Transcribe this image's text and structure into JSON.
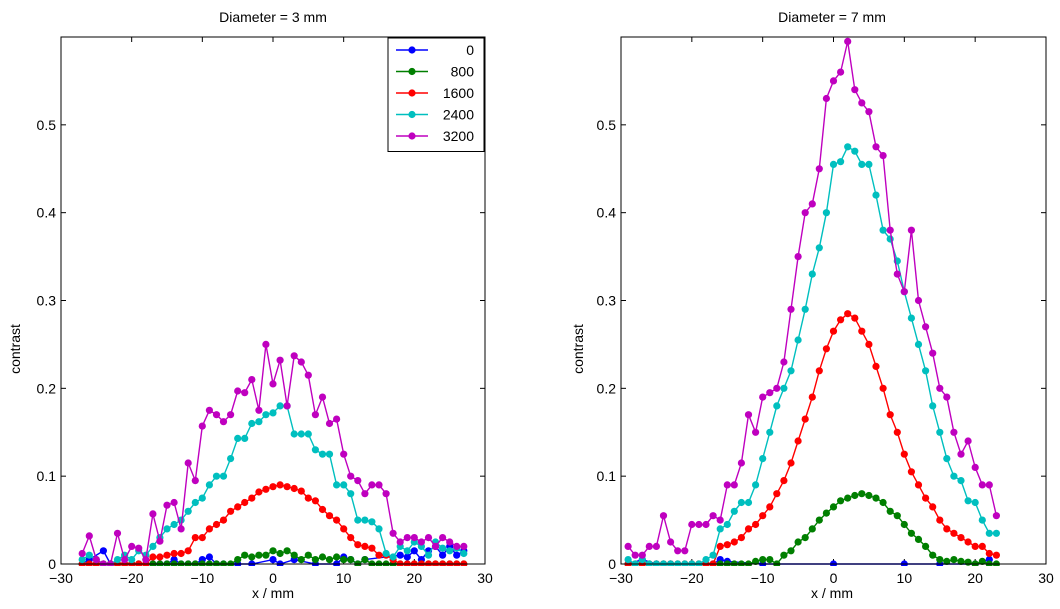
{
  "chart_data": [
    {
      "type": "line",
      "title": "Diameter = 3 mm",
      "xlabel": "x / mm",
      "ylabel": "contrast",
      "xlim": [
        -30,
        30
      ],
      "ylim": [
        0,
        0.6
      ],
      "xticks": [
        -30,
        -20,
        -10,
        0,
        10,
        20,
        30
      ],
      "yticks": [
        0,
        0.1,
        0.2,
        0.3,
        0.4,
        0.5
      ],
      "ytick_labels": [
        "0",
        "0.1",
        "0.2",
        "0.3",
        "0.4",
        "0.5"
      ],
      "grid": false,
      "legend_position": "top-right",
      "series": [
        {
          "name": "0",
          "color": "#0000ff",
          "x": [
            -27,
            -26,
            -24,
            -23,
            -20,
            -19,
            -17,
            -16,
            -15,
            -14,
            -13,
            -12,
            -11,
            -10,
            -9,
            -8,
            -7,
            -5,
            -3,
            0,
            1,
            3,
            6,
            9,
            10,
            11,
            12,
            13,
            18,
            19,
            20,
            21,
            22,
            23,
            24,
            25,
            26,
            27
          ],
          "y": [
            0.0,
            0.005,
            0.015,
            0.0,
            0.0,
            0.0,
            0.0,
            0.0,
            0.0,
            0.005,
            0.0,
            0.0,
            0.0,
            0.005,
            0.008,
            0.0,
            0.0,
            0.0,
            0.0,
            0.005,
            0.0,
            0.005,
            0.0,
            0.0,
            0.008,
            0.005,
            0.0,
            0.005,
            0.01,
            0.008,
            0.015,
            0.005,
            0.015,
            0.02,
            0.01,
            0.02,
            0.01,
            0.015
          ]
        },
        {
          "name": "800",
          "color": "#007f00",
          "x": [
            -27,
            -26,
            -25,
            -24,
            -23,
            -22,
            -21,
            -20,
            -19,
            -18,
            -17,
            -16,
            -15,
            -14,
            -13,
            -12,
            -11,
            -10,
            -9,
            -8,
            -7,
            -6,
            -5,
            -4,
            -3,
            -2,
            -1,
            0,
            1,
            2,
            3,
            4,
            5,
            6,
            7,
            8,
            9,
            10,
            11,
            12,
            13,
            14,
            15,
            16,
            17,
            18,
            19,
            20,
            21,
            22,
            23,
            24,
            25,
            26,
            27
          ],
          "y": [
            0.0,
            0.0,
            0.0,
            0.0,
            0.0,
            0.0,
            0.0,
            0.0,
            0.0,
            0.0,
            0.0,
            0.0,
            0.0,
            0.0,
            0.0,
            0.0,
            0.0,
            0.0,
            0.0,
            0.0,
            0.0,
            0.0,
            0.005,
            0.01,
            0.008,
            0.01,
            0.01,
            0.015,
            0.012,
            0.015,
            0.01,
            0.005,
            0.01,
            0.005,
            0.008,
            0.005,
            0.008,
            0.005,
            0.005,
            0.0,
            0.005,
            0.0,
            0.0,
            0.0,
            0.0,
            0.0,
            0.0,
            0.0,
            0.0,
            0.0,
            0.0,
            0.0,
            0.0,
            0.0,
            0.0
          ]
        },
        {
          "name": "1600",
          "color": "#ff0000",
          "x": [
            -27,
            -26,
            -25,
            -24,
            -23,
            -22,
            -21,
            -20,
            -19,
            -18,
            -17,
            -16,
            -15,
            -14,
            -13,
            -12,
            -11,
            -10,
            -9,
            -8,
            -7,
            -6,
            -5,
            -4,
            -3,
            -2,
            -1,
            0,
            1,
            2,
            3,
            4,
            5,
            6,
            7,
            8,
            9,
            10,
            11,
            12,
            13,
            14,
            15,
            16,
            17,
            18,
            19,
            20,
            21,
            22,
            23,
            24,
            25,
            26,
            27
          ],
          "y": [
            0.0,
            0.0,
            0.0,
            0.0,
            0.0,
            0.0,
            0.0,
            0.0,
            0.0,
            0.0,
            0.008,
            0.008,
            0.01,
            0.012,
            0.012,
            0.015,
            0.03,
            0.03,
            0.04,
            0.045,
            0.05,
            0.06,
            0.065,
            0.07,
            0.075,
            0.082,
            0.085,
            0.088,
            0.09,
            0.088,
            0.086,
            0.083,
            0.075,
            0.072,
            0.062,
            0.055,
            0.05,
            0.04,
            0.03,
            0.022,
            0.02,
            0.018,
            0.01,
            0.01,
            0.005,
            0.0,
            0.0,
            0.0,
            0.0,
            0.0,
            0.0,
            0.0,
            0.0,
            0.0,
            0.0
          ]
        },
        {
          "name": "2400",
          "color": "#00bfbf",
          "x": [
            -27,
            -26,
            -25,
            -24,
            -23,
            -22,
            -21,
            -20,
            -19,
            -18,
            -17,
            -16,
            -15,
            -14,
            -13,
            -12,
            -11,
            -10,
            -9,
            -8,
            -7,
            -6,
            -5,
            -4,
            -3,
            -2,
            -1,
            0,
            1,
            2,
            3,
            4,
            5,
            6,
            7,
            8,
            9,
            10,
            11,
            12,
            13,
            14,
            15,
            16,
            17,
            18,
            19,
            20,
            21,
            22,
            23,
            24,
            25,
            26,
            27
          ],
          "y": [
            0.005,
            0.01,
            0.005,
            0.0,
            0.0,
            0.005,
            0.01,
            0.005,
            0.015,
            0.01,
            0.02,
            0.03,
            0.04,
            0.045,
            0.05,
            0.06,
            0.07,
            0.075,
            0.09,
            0.1,
            0.1,
            0.12,
            0.143,
            0.143,
            0.16,
            0.162,
            0.17,
            0.172,
            0.18,
            0.18,
            0.148,
            0.148,
            0.148,
            0.13,
            0.125,
            0.125,
            0.09,
            0.09,
            0.08,
            0.05,
            0.05,
            0.048,
            0.04,
            0.012,
            0.008,
            0.02,
            0.015,
            0.025,
            0.02,
            0.01,
            0.025,
            0.018,
            0.015,
            0.018,
            0.012
          ]
        },
        {
          "name": "3200",
          "color": "#bf00bf",
          "x": [
            -27,
            -26,
            -25,
            -24,
            -23,
            -22,
            -21,
            -20,
            -19,
            -18,
            -17,
            -16,
            -15,
            -14,
            -13,
            -12,
            -11,
            -10,
            -9,
            -8,
            -7,
            -6,
            -5,
            -4,
            -3,
            -2,
            -1,
            0,
            1,
            2,
            3,
            4,
            5,
            6,
            7,
            8,
            9,
            10,
            11,
            12,
            13,
            14,
            15,
            16,
            17,
            18,
            19,
            20,
            21,
            22,
            23,
            24,
            25,
            26,
            27
          ],
          "y": [
            0.012,
            0.032,
            0.005,
            0.0,
            0.0,
            0.035,
            0.005,
            0.02,
            0.018,
            0.005,
            0.057,
            0.026,
            0.067,
            0.07,
            0.04,
            0.115,
            0.095,
            0.157,
            0.175,
            0.17,
            0.162,
            0.17,
            0.197,
            0.195,
            0.21,
            0.175,
            0.25,
            0.205,
            0.232,
            0.18,
            0.237,
            0.23,
            0.215,
            0.17,
            0.19,
            0.16,
            0.165,
            0.125,
            0.1,
            0.095,
            0.08,
            0.09,
            0.09,
            0.08,
            0.035,
            0.025,
            0.03,
            0.03,
            0.025,
            0.03,
            0.02,
            0.03,
            0.025,
            0.02,
            0.02
          ]
        }
      ]
    },
    {
      "type": "line",
      "title": "Diameter = 7 mm",
      "xlabel": "x / mm",
      "ylabel": "contrast",
      "xlim": [
        -30,
        30
      ],
      "ylim": [
        0,
        0.6
      ],
      "xticks": [
        -30,
        -20,
        -10,
        0,
        10,
        20,
        30
      ],
      "yticks": [
        0,
        0.1,
        0.2,
        0.3,
        0.4,
        0.5
      ],
      "ytick_labels": [
        "0",
        "0.1",
        "0.2",
        "0.3",
        "0.4",
        "0.5"
      ],
      "grid": false,
      "series": [
        {
          "name": "0",
          "color": "#0000ff",
          "x": [
            -29,
            -27,
            -25,
            -23,
            -17,
            -16,
            -15,
            -10,
            0,
            10,
            15,
            20,
            22
          ],
          "y": [
            0.0,
            0.005,
            0.0,
            0.0,
            0.0,
            0.005,
            0.003,
            0.0,
            0.0,
            0.0,
            0.0,
            0.0,
            0.005
          ]
        },
        {
          "name": "800",
          "color": "#007f00",
          "x": [
            -29,
            -28,
            -27,
            -26,
            -25,
            -24,
            -23,
            -22,
            -21,
            -20,
            -19,
            -18,
            -17,
            -16,
            -15,
            -14,
            -13,
            -12,
            -11,
            -10,
            -9,
            -8,
            -7,
            -6,
            -5,
            -4,
            -3,
            -2,
            -1,
            0,
            1,
            2,
            3,
            4,
            5,
            6,
            7,
            8,
            9,
            10,
            11,
            12,
            13,
            14,
            15,
            16,
            17,
            18,
            19,
            20,
            21,
            22,
            23
          ],
          "y": [
            0.0,
            0.0,
            0.0,
            0.0,
            0.0,
            0.0,
            0.0,
            0.0,
            0.0,
            0.0,
            0.0,
            0.0,
            0.0,
            0.0,
            0.0,
            0.0,
            0.0,
            0.0,
            0.003,
            0.005,
            0.005,
            0.0,
            0.01,
            0.015,
            0.025,
            0.03,
            0.04,
            0.05,
            0.058,
            0.065,
            0.072,
            0.075,
            0.078,
            0.08,
            0.078,
            0.075,
            0.07,
            0.06,
            0.055,
            0.045,
            0.035,
            0.028,
            0.02,
            0.01,
            0.005,
            0.003,
            0.005,
            0.003,
            0.002,
            0.0,
            0.003,
            0.0,
            0.0
          ]
        },
        {
          "name": "1600",
          "color": "#ff0000",
          "x": [
            -29,
            -28,
            -27,
            -26,
            -25,
            -24,
            -23,
            -22,
            -21,
            -20,
            -19,
            -18,
            -17,
            -16,
            -15,
            -14,
            -13,
            -12,
            -11,
            -10,
            -9,
            -8,
            -7,
            -6,
            -5,
            -4,
            -3,
            -2,
            -1,
            0,
            1,
            2,
            3,
            4,
            5,
            6,
            7,
            8,
            9,
            10,
            11,
            12,
            13,
            14,
            15,
            16,
            17,
            18,
            19,
            20,
            21,
            22,
            23
          ],
          "y": [
            0.0,
            0.0,
            0.0,
            0.0,
            0.0,
            0.0,
            0.0,
            0.0,
            0.0,
            0.0,
            0.0,
            0.0,
            0.0,
            0.02,
            0.022,
            0.025,
            0.03,
            0.04,
            0.045,
            0.055,
            0.065,
            0.08,
            0.095,
            0.115,
            0.14,
            0.165,
            0.19,
            0.22,
            0.245,
            0.265,
            0.278,
            0.285,
            0.28,
            0.265,
            0.25,
            0.225,
            0.2,
            0.17,
            0.15,
            0.125,
            0.105,
            0.09,
            0.075,
            0.065,
            0.05,
            0.04,
            0.035,
            0.03,
            0.025,
            0.02,
            0.02,
            0.012,
            0.01
          ]
        },
        {
          "name": "2400",
          "color": "#00bfbf",
          "x": [
            -29,
            -28,
            -27,
            -26,
            -25,
            -24,
            -23,
            -22,
            -21,
            -20,
            -19,
            -18,
            -17,
            -16,
            -15,
            -14,
            -13,
            -12,
            -11,
            -10,
            -9,
            -8,
            -7,
            -6,
            -5,
            -4,
            -3,
            -2,
            -1,
            0,
            1,
            2,
            3,
            4,
            5,
            6,
            7,
            8,
            9,
            10,
            11,
            12,
            13,
            14,
            15,
            16,
            17,
            18,
            19,
            20,
            21,
            22,
            23
          ],
          "y": [
            0.005,
            0.0,
            0.005,
            0.0,
            0.0,
            0.0,
            0.0,
            0.0,
            0.0,
            0.0,
            0.0,
            0.005,
            0.01,
            0.04,
            0.045,
            0.06,
            0.07,
            0.07,
            0.09,
            0.12,
            0.15,
            0.18,
            0.2,
            0.22,
            0.255,
            0.29,
            0.33,
            0.36,
            0.4,
            0.455,
            0.458,
            0.475,
            0.47,
            0.455,
            0.455,
            0.42,
            0.38,
            0.37,
            0.345,
            0.31,
            0.28,
            0.25,
            0.22,
            0.18,
            0.15,
            0.12,
            0.1,
            0.095,
            0.072,
            0.07,
            0.05,
            0.035,
            0.035
          ]
        },
        {
          "name": "3200",
          "color": "#bf00bf",
          "x": [
            -29,
            -28,
            -27,
            -26,
            -25,
            -24,
            -23,
            -22,
            -21,
            -20,
            -19,
            -18,
            -17,
            -16,
            -15,
            -14,
            -13,
            -12,
            -11,
            -10,
            -9,
            -8,
            -7,
            -6,
            -5,
            -4,
            -3,
            -2,
            -1,
            0,
            1,
            2,
            3,
            4,
            5,
            6,
            7,
            8,
            9,
            10,
            11,
            12,
            13,
            14,
            15,
            16,
            17,
            18,
            19,
            20,
            21,
            22,
            23
          ],
          "y": [
            0.02,
            0.01,
            0.01,
            0.02,
            0.02,
            0.055,
            0.025,
            0.015,
            0.015,
            0.045,
            0.045,
            0.045,
            0.055,
            0.05,
            0.09,
            0.09,
            0.115,
            0.17,
            0.15,
            0.19,
            0.195,
            0.2,
            0.23,
            0.29,
            0.35,
            0.4,
            0.41,
            0.45,
            0.53,
            0.55,
            0.56,
            0.595,
            0.54,
            0.525,
            0.515,
            0.475,
            0.465,
            0.38,
            0.33,
            0.31,
            0.38,
            0.3,
            0.27,
            0.24,
            0.2,
            0.19,
            0.15,
            0.125,
            0.14,
            0.11,
            0.09,
            0.09,
            0.055
          ]
        }
      ]
    }
  ]
}
